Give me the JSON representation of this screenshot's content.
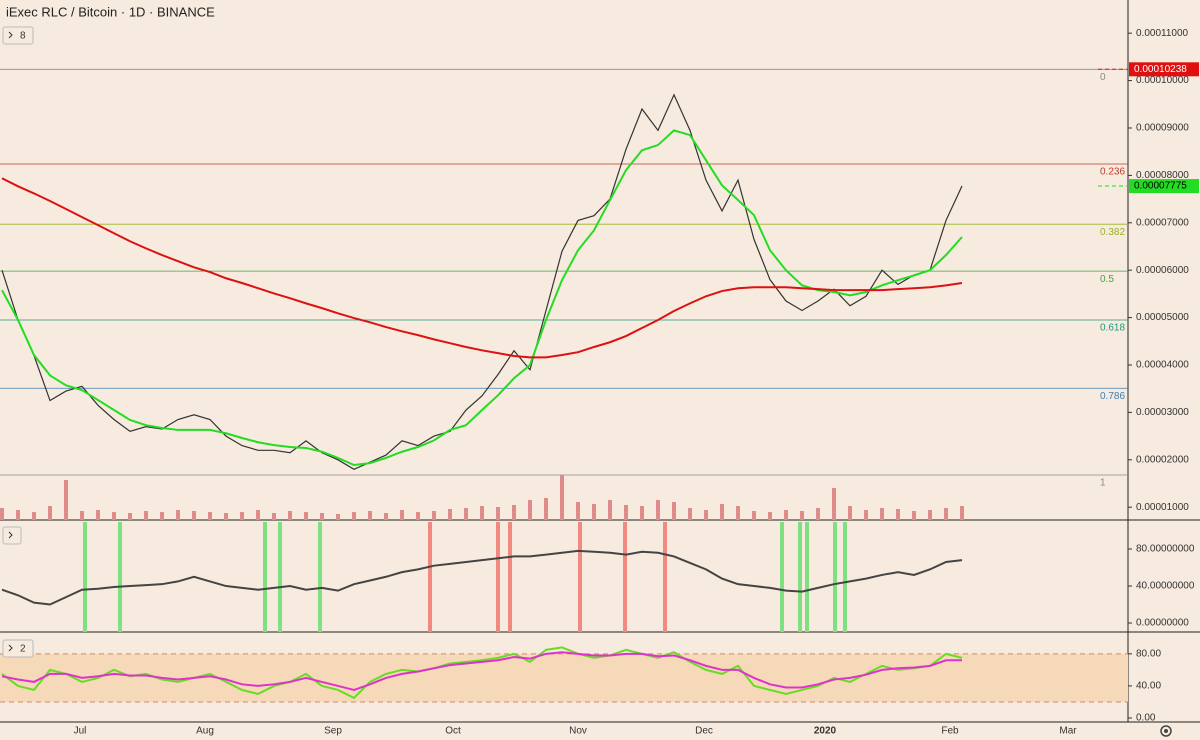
{
  "title": "iExec RLC / Bitcoin · 1D · BINANCE",
  "main_pane_button": "8",
  "rsi_pane_button": "2",
  "x_axis": {
    "labels": [
      "Jul",
      "Aug",
      "Sep",
      "Oct",
      "Nov",
      "Dec",
      "2020",
      "Feb",
      "Mar"
    ]
  },
  "chart_data": [
    {
      "type": "line",
      "ylim": [
        7.3e-06,
        0.000117
      ],
      "yticks": [
        {
          "value": 0.00011,
          "label": "0.00011000"
        },
        {
          "value": 0.0001,
          "label": "0.00010000"
        },
        {
          "value": 9e-05,
          "label": "0.00009000"
        },
        {
          "value": 8e-05,
          "label": "0.00008000"
        },
        {
          "value": 7e-05,
          "label": "0.00007000"
        },
        {
          "value": 6e-05,
          "label": "0.00006000"
        },
        {
          "value": 5e-05,
          "label": "0.00005000"
        },
        {
          "value": 4e-05,
          "label": "0.00004000"
        },
        {
          "value": 3e-05,
          "label": "0.00003000"
        },
        {
          "value": 2e-05,
          "label": "0.00002000"
        },
        {
          "value": 1e-05,
          "label": "0.00001000"
        }
      ],
      "series": [
        {
          "color": "#333333",
          "values": [
            6e-05,
            4.95e-05,
            4.2e-05,
            3.25e-05,
            3.45e-05,
            3.55e-05,
            3.15e-05,
            2.85e-05,
            2.6e-05,
            2.7e-05,
            2.65e-05,
            2.85e-05,
            2.95e-05,
            2.85e-05,
            2.5e-05,
            2.3e-05,
            2.2e-05,
            2.2e-05,
            2.15e-05,
            2.4e-05,
            2.15e-05,
            2e-05,
            1.8e-05,
            1.95e-05,
            2.1e-05,
            2.4e-05,
            2.3e-05,
            2.5e-05,
            2.6e-05,
            3.05e-05,
            3.35e-05,
            3.8e-05,
            4.3e-05,
            3.9e-05,
            5.15e-05,
            6.4e-05,
            7.05e-05,
            7.15e-05,
            7.5e-05,
            8.55e-05,
            9.4e-05,
            8.95e-05,
            9.7e-05,
            8.95e-05,
            7.9e-05,
            7.25e-05,
            7.9e-05,
            6.65e-05,
            5.8e-05,
            5.35e-05,
            5.15e-05,
            5.35e-05,
            5.6e-05,
            5.25e-05,
            5.45e-05,
            6e-05,
            5.7e-05,
            5.9e-05,
            6e-05,
            7.05e-05,
            7.775e-05
          ]
        },
        {
          "color": "#22dd22",
          "values": [
            5.58e-05,
            4.95e-05,
            4.21e-05,
            3.78e-05,
            3.57e-05,
            3.47e-05,
            3.26e-05,
            3.05e-05,
            2.84e-05,
            2.73e-05,
            2.67e-05,
            2.63e-05,
            2.63e-05,
            2.63e-05,
            2.56e-05,
            2.46e-05,
            2.37e-05,
            2.31e-05,
            2.27e-05,
            2.25e-05,
            2.17e-05,
            2.04e-05,
            1.89e-05,
            1.93e-05,
            2.04e-05,
            2.17e-05,
            2.27e-05,
            2.41e-05,
            2.63e-05,
            2.73e-05,
            3.05e-05,
            3.36e-05,
            3.72e-05,
            4e-05,
            4.95e-05,
            5.79e-05,
            6.42e-05,
            6.84e-05,
            7.48e-05,
            8.11e-05,
            8.53e-05,
            8.64e-05,
            8.95e-05,
            8.85e-05,
            8.32e-05,
            7.79e-05,
            7.48e-05,
            7.16e-05,
            6.42e-05,
            6e-05,
            5.68e-05,
            5.58e-05,
            5.54e-05,
            5.47e-05,
            5.54e-05,
            5.68e-05,
            5.79e-05,
            5.89e-05,
            6e-05,
            6.32e-05,
            6.7e-05
          ]
        },
        {
          "color": "#dd1111",
          "values": [
            7.94e-05,
            7.77e-05,
            7.62e-05,
            7.46e-05,
            7.29e-05,
            7.12e-05,
            6.95e-05,
            6.78e-05,
            6.61e-05,
            6.46e-05,
            6.32e-05,
            6.19e-05,
            6.06e-05,
            5.96e-05,
            5.83e-05,
            5.73e-05,
            5.62e-05,
            5.51e-05,
            5.41e-05,
            5.3e-05,
            5.2e-05,
            5.09e-05,
            4.99e-05,
            4.9e-05,
            4.8e-05,
            4.71e-05,
            4.63e-05,
            4.54e-05,
            4.46e-05,
            4.38e-05,
            4.31e-05,
            4.25e-05,
            4.19e-05,
            4.16e-05,
            4.16e-05,
            4.21e-05,
            4.27e-05,
            4.38e-05,
            4.48e-05,
            4.61e-05,
            4.78e-05,
            4.95e-05,
            5.14e-05,
            5.3e-05,
            5.45e-05,
            5.56e-05,
            5.62e-05,
            5.64e-05,
            5.64e-05,
            5.64e-05,
            5.62e-05,
            5.6e-05,
            5.58e-05,
            5.58e-05,
            5.58e-05,
            5.58e-05,
            5.6e-05,
            5.62e-05,
            5.64e-05,
            5.68e-05,
            5.73e-05
          ]
        }
      ],
      "volume": {
        "color": "#e08a8a",
        "values": [
          12,
          10,
          8,
          14,
          40,
          9,
          10,
          8,
          7,
          9,
          8,
          10,
          9,
          8,
          7,
          8,
          10,
          7,
          9,
          8,
          7,
          6,
          8,
          9,
          7,
          10,
          8,
          9,
          11,
          12,
          14,
          13,
          15,
          20,
          22,
          45,
          18,
          16,
          20,
          15,
          14,
          20,
          18,
          12,
          10,
          16,
          14,
          9,
          8,
          10,
          9,
          12,
          32,
          14,
          10,
          12,
          11,
          9,
          10,
          12,
          14
        ]
      },
      "levels": [
        {
          "label": "0",
          "value": 0.00010238,
          "color": "#8a8a8a"
        },
        {
          "label": "0.236",
          "value": 8.24e-05,
          "color": "#c0392b"
        },
        {
          "label": "0.382",
          "value": 6.97e-05,
          "color": "#9ab21e"
        },
        {
          "label": "0.5",
          "value": 5.98e-05,
          "color": "#3aa83a"
        },
        {
          "label": "0.618",
          "value": 4.95e-05,
          "color": "#1a9a7a"
        },
        {
          "label": "0.786",
          "value": 3.51e-05,
          "color": "#3a7fb5"
        },
        {
          "label": "1",
          "value": 1.68e-05,
          "color": "#8a8a8a"
        }
      ],
      "price_labels": [
        {
          "value": 0.00010238,
          "label": "0.00010238",
          "color": "#e01010"
        },
        {
          "value": 7.775e-05,
          "label": "0.00007775",
          "color": "#22dd22"
        }
      ]
    },
    {
      "type": "line",
      "ylim": [
        -9.7,
        110.3
      ],
      "yticks": [
        {
          "value": 80,
          "label": "80.00000000"
        },
        {
          "value": 40,
          "label": "40.00000000"
        },
        {
          "value": 0,
          "label": "0.00000000"
        }
      ],
      "series": [
        {
          "color": "#444444",
          "values": [
            36,
            30,
            22,
            20,
            28,
            36,
            37,
            39,
            40,
            41,
            42,
            45,
            50,
            45,
            40,
            38,
            36,
            38,
            40,
            36,
            38,
            35,
            42,
            46,
            50,
            55,
            58,
            62,
            64,
            66,
            68,
            70,
            72,
            72,
            74,
            76,
            78,
            77,
            76,
            74,
            77,
            76,
            72,
            65,
            58,
            48,
            42,
            40,
            38,
            35,
            34,
            38,
            42,
            45,
            48,
            52,
            55,
            52,
            58,
            66,
            68
          ]
        }
      ]
    },
    {
      "type": "line",
      "ylim": [
        -5,
        106
      ],
      "yticks": [
        {
          "value": 80,
          "label": "80.00"
        },
        {
          "value": 40,
          "label": "40.00"
        },
        {
          "value": 0,
          "label": "0.00"
        }
      ],
      "band": [
        20,
        80
      ],
      "series": [
        {
          "color": "#66dd22",
          "values": [
            55,
            40,
            35,
            60,
            55,
            45,
            50,
            60,
            52,
            55,
            48,
            45,
            50,
            55,
            45,
            35,
            30,
            40,
            45,
            55,
            40,
            35,
            25,
            45,
            55,
            60,
            58,
            62,
            68,
            70,
            72,
            75,
            80,
            70,
            85,
            88,
            80,
            75,
            78,
            85,
            80,
            75,
            82,
            70,
            60,
            55,
            65,
            40,
            35,
            30,
            35,
            40,
            50,
            45,
            55,
            65,
            60,
            62,
            65,
            80,
            75
          ]
        },
        {
          "color": "#dd33cc",
          "values": [
            52,
            48,
            45,
            55,
            55,
            50,
            52,
            55,
            53,
            53,
            50,
            48,
            50,
            52,
            48,
            42,
            40,
            42,
            45,
            50,
            45,
            40,
            35,
            42,
            50,
            55,
            58,
            62,
            66,
            68,
            70,
            72,
            76,
            74,
            80,
            82,
            80,
            78,
            78,
            80,
            80,
            77,
            78,
            72,
            65,
            60,
            60,
            50,
            42,
            38,
            38,
            42,
            48,
            50,
            54,
            60,
            62,
            63,
            65,
            72,
            72
          ]
        }
      ]
    }
  ]
}
